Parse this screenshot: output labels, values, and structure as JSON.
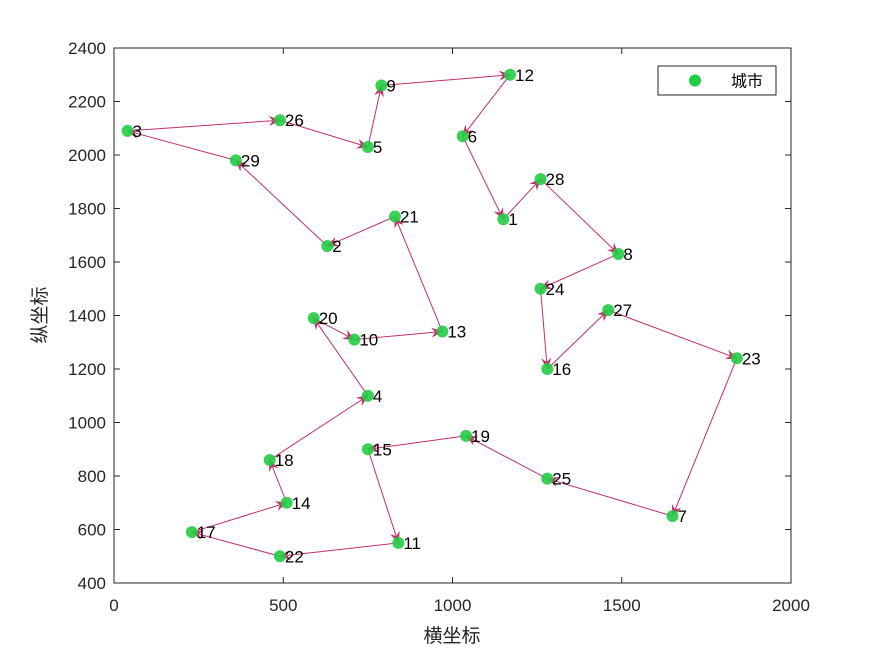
{
  "chart_data": {
    "type": "scatter",
    "xlabel": "横坐标",
    "ylabel": "纵坐标",
    "xlim": [
      0,
      2000
    ],
    "ylim": [
      400,
      2400
    ],
    "x_ticks": [
      0,
      500,
      1000,
      1500,
      2000
    ],
    "y_ticks": [
      400,
      600,
      800,
      1000,
      1200,
      1400,
      1600,
      1800,
      2000,
      2200,
      2400
    ],
    "grid": false,
    "legend": {
      "position": "top-right",
      "entries": [
        "城市"
      ]
    },
    "colors": {
      "point": "#22cc44",
      "route": "#c0306a"
    },
    "points": [
      {
        "id": "1",
        "x": 1150,
        "y": 1760
      },
      {
        "id": "2",
        "x": 630,
        "y": 1660
      },
      {
        "id": "3",
        "x": 40,
        "y": 2090
      },
      {
        "id": "4",
        "x": 750,
        "y": 1100
      },
      {
        "id": "5",
        "x": 750,
        "y": 2030
      },
      {
        "id": "6",
        "x": 1030,
        "y": 2070
      },
      {
        "id": "7",
        "x": 1650,
        "y": 650
      },
      {
        "id": "8",
        "x": 1490,
        "y": 1630
      },
      {
        "id": "9",
        "x": 790,
        "y": 2260
      },
      {
        "id": "10",
        "x": 710,
        "y": 1310
      },
      {
        "id": "11",
        "x": 840,
        "y": 550
      },
      {
        "id": "12",
        "x": 1170,
        "y": 2300
      },
      {
        "id": "13",
        "x": 970,
        "y": 1340
      },
      {
        "id": "14",
        "x": 510,
        "y": 700
      },
      {
        "id": "15",
        "x": 750,
        "y": 900
      },
      {
        "id": "16",
        "x": 1280,
        "y": 1200
      },
      {
        "id": "17",
        "x": 230,
        "y": 590
      },
      {
        "id": "18",
        "x": 460,
        "y": 860
      },
      {
        "id": "19",
        "x": 1040,
        "y": 950
      },
      {
        "id": "20",
        "x": 590,
        "y": 1390
      },
      {
        "id": "21",
        "x": 830,
        "y": 1770
      },
      {
        "id": "22",
        "x": 490,
        "y": 500
      },
      {
        "id": "23",
        "x": 1840,
        "y": 1240
      },
      {
        "id": "24",
        "x": 1260,
        "y": 1500
      },
      {
        "id": "25",
        "x": 1280,
        "y": 790
      },
      {
        "id": "26",
        "x": 490,
        "y": 2130
      },
      {
        "id": "27",
        "x": 1460,
        "y": 1420
      },
      {
        "id": "28",
        "x": 1260,
        "y": 1910
      },
      {
        "id": "29",
        "x": 360,
        "y": 1980
      }
    ],
    "route": [
      "27",
      "23",
      "7",
      "25",
      "19",
      "15",
      "11",
      "22",
      "17",
      "14",
      "18",
      "4",
      "20",
      "10",
      "13",
      "21",
      "2",
      "29",
      "3",
      "26",
      "5",
      "9",
      "12",
      "6",
      "1",
      "28",
      "8",
      "24",
      "16",
      "27"
    ]
  }
}
